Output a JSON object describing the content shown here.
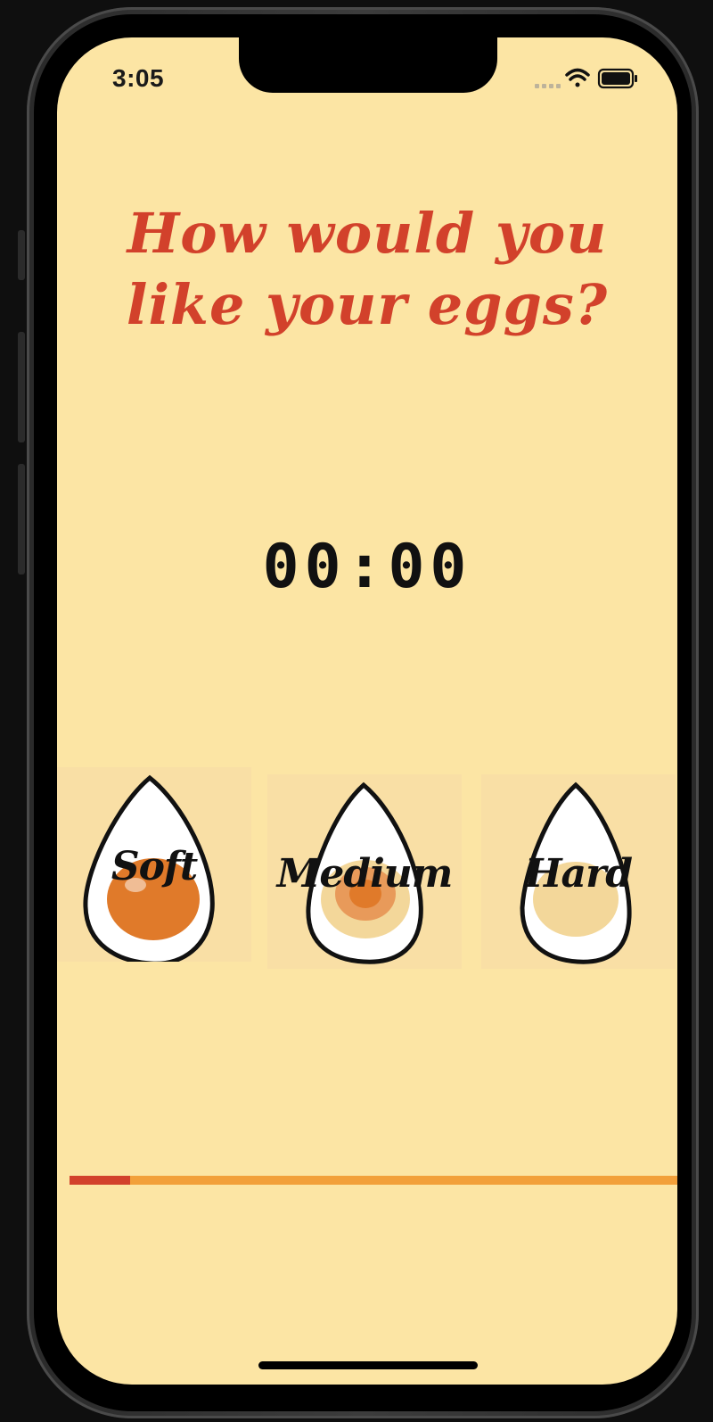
{
  "status_bar": {
    "time": "3:05"
  },
  "screen": {
    "title_line1": "How would you",
    "title_line2": "like your eggs?",
    "timer": "00:00"
  },
  "eggs": [
    {
      "label": "Soft",
      "yolk_color": "#E07A2A"
    },
    {
      "label": "Medium",
      "yolk_color": "#E89A5A"
    },
    {
      "label": "Hard",
      "yolk_color": "#F3D79A"
    }
  ],
  "progress": {
    "value": 0.1
  },
  "colors": {
    "background": "#FCE5A4",
    "title": "#D2412B",
    "progress_track": "#F2A03A",
    "progress_fill": "#D2412B"
  },
  "icons": [
    "signal-icon",
    "wifi-icon",
    "battery-icon"
  ]
}
